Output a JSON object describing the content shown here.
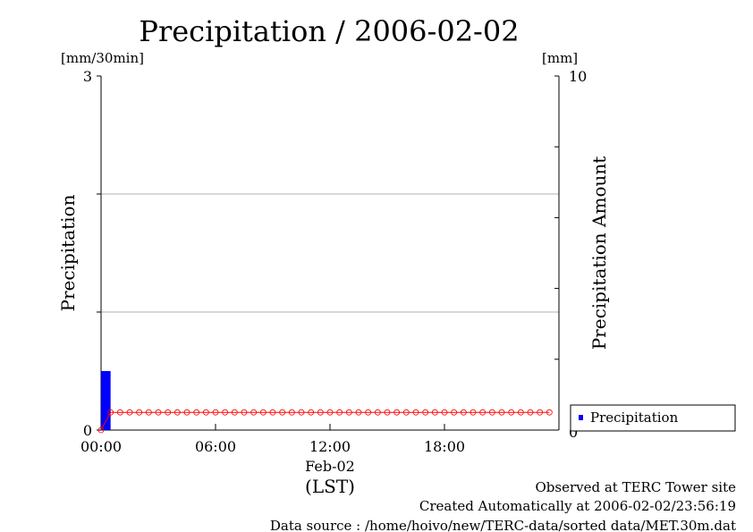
{
  "chart_data": {
    "type": "bar",
    "title": "Precipitation / 2006-02-02",
    "left_axis": {
      "label": "Precipitation",
      "unit": "[mm/30min]",
      "range": [
        0,
        3
      ],
      "tick_labels": [
        "0",
        "3"
      ],
      "minor_ticks": [
        1,
        2
      ]
    },
    "right_axis": {
      "label": "Precipitation Amount",
      "unit": "[mm]",
      "range": [
        0,
        10
      ],
      "tick_labels": [
        "0",
        "10"
      ],
      "minor_ticks": [
        2,
        4,
        6,
        8
      ]
    },
    "x_axis": {
      "range_hours": [
        0,
        24
      ],
      "tick_labels": [
        "00:00",
        "06:00",
        "12:00",
        "18:00"
      ],
      "tick_hours": [
        0,
        6,
        12,
        18
      ],
      "date_label": "Feb-02",
      "unit_label": "(LST)"
    },
    "gridlines": [
      1,
      2
    ],
    "legend": {
      "placement": "bottom-right",
      "entries": [
        "Precipitation"
      ]
    },
    "series": [
      {
        "name": "Precipitation",
        "kind": "bar",
        "axis": "left",
        "color": "#0000ff",
        "points": [
          {
            "start_hour": 0,
            "end_hour": 0.5,
            "value": 0.5
          }
        ]
      },
      {
        "kind": "line-markers",
        "axis": "right",
        "color": "#ff0000",
        "interval_hours": 0.5,
        "values": [
          0,
          0.5,
          0.5,
          0.5,
          0.5,
          0.5,
          0.5,
          0.5,
          0.5,
          0.5,
          0.5,
          0.5,
          0.5,
          0.5,
          0.5,
          0.5,
          0.5,
          0.5,
          0.5,
          0.5,
          0.5,
          0.5,
          0.5,
          0.5,
          0.5,
          0.5,
          0.5,
          0.5,
          0.5,
          0.5,
          0.5,
          0.5,
          0.5,
          0.5,
          0.5,
          0.5,
          0.5,
          0.5,
          0.5,
          0.5,
          0.5,
          0.5,
          0.5,
          0.5,
          0.5,
          0.5,
          0.5,
          0.5
        ]
      }
    ]
  },
  "footer": {
    "line1": "Observed at TERC Tower site",
    "line2": "Created Automatically at 2006-02-02/23:56:19",
    "line3": "Data source : /home/hoivo/new/TERC-data/sorted  data/MET.30m.dat"
  }
}
